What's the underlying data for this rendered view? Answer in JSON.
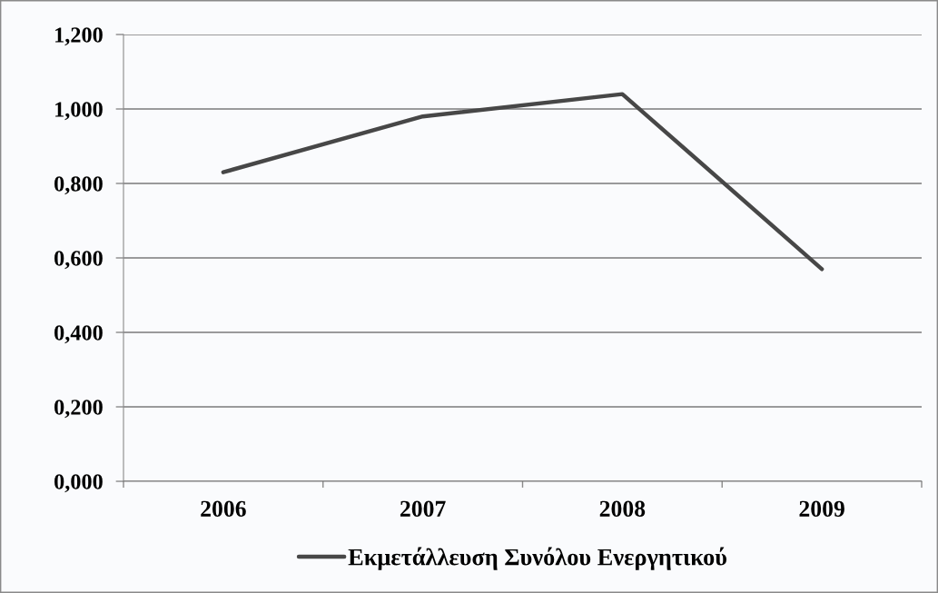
{
  "chart_data": {
    "type": "line",
    "categories": [
      "2006",
      "2007",
      "2008",
      "2009"
    ],
    "series": [
      {
        "name": "Εκμετάλλευση Συνόλου Ενεργητικού",
        "color": "#474747",
        "values": [
          0.83,
          0.98,
          1.04,
          0.57
        ]
      }
    ],
    "ylim": [
      0,
      1.2
    ],
    "yticks": [
      {
        "value": 0,
        "label": "0,000"
      },
      {
        "value": 0.2,
        "label": "0,200"
      },
      {
        "value": 0.4,
        "label": "0,400"
      },
      {
        "value": 0.6,
        "label": "0,600"
      },
      {
        "value": 0.8,
        "label": "0,800"
      },
      {
        "value": 1.0,
        "label": "1,000"
      },
      {
        "value": 1.2,
        "label": "1,200"
      }
    ],
    "grid": "y",
    "legend": "bottom",
    "line_style": "solid"
  }
}
